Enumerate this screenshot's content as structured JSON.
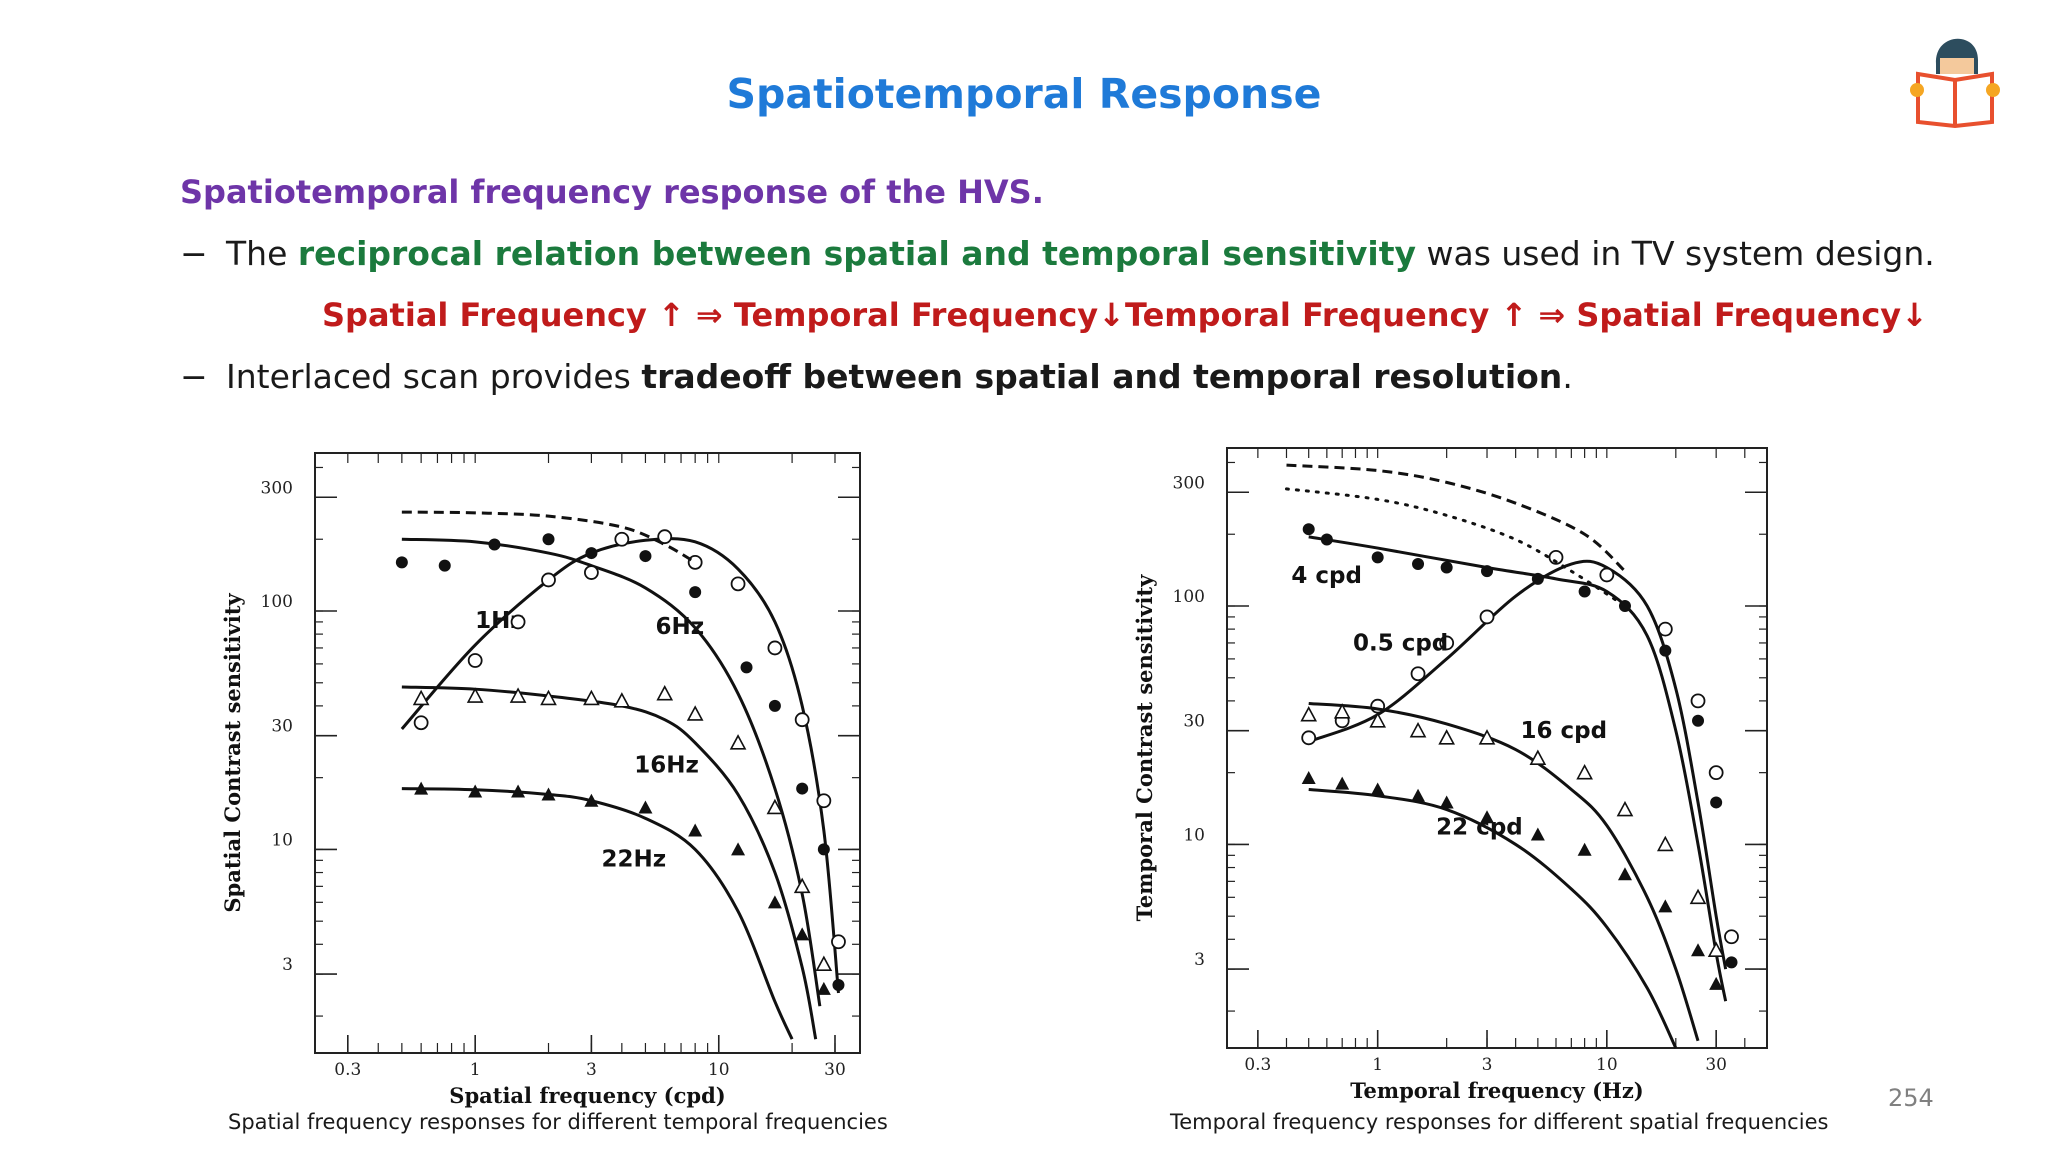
{
  "slide": {
    "title": "Spatiotemporal Response",
    "subheading": "Spatiotemporal frequency response of the HVS.",
    "bullet1": {
      "dash": "−",
      "pre": "The ",
      "highlight": "reciprocal relation between spatial and temporal sensitivity",
      "post": " was used in TV system design."
    },
    "relation_left": "Spatial Frequency ↑ ⇒ Temporal Frequency↓",
    "relation_right": "Temporal Frequency ↑ ⇒ Spatial Frequency↓",
    "bullet2": {
      "dash": "−",
      "pre": "Interlaced scan provides ",
      "bold": "tradeoff between spatial and temporal resolution",
      "post": "."
    },
    "caption_left": "Spatial frequency responses for different temporal frequencies",
    "caption_right": "Temporal frequency responses for different spatial  frequencies",
    "page_number": "254",
    "logo_icon": "reader-book-icon"
  },
  "chart_data": [
    {
      "type": "line",
      "xlabel": "Spatial frequency (cpd)",
      "ylabel": "Spatial Contrast sensitivity",
      "xscale": "log",
      "yscale": "log",
      "xlim": [
        0.22,
        38
      ],
      "ylim": [
        1.4,
        460
      ],
      "xticks": [
        0.3,
        1,
        3,
        10,
        30
      ],
      "yticks": [
        3,
        10,
        30,
        100,
        300
      ],
      "series": [
        {
          "name": "1Hz",
          "marker": "filled-circle",
          "label_at": [
            1.0,
            85
          ],
          "curve": [
            [
              0.5,
              200
            ],
            [
              1,
              195
            ],
            [
              2,
              175
            ],
            [
              3,
              155
            ],
            [
              5,
              125
            ],
            [
              8,
              85
            ],
            [
              12,
              45
            ],
            [
              17,
              18
            ],
            [
              22,
              6.5
            ],
            [
              26,
              2.2
            ]
          ],
          "points": [
            [
              0.5,
              160
            ],
            [
              0.75,
              155
            ],
            [
              1.2,
              190
            ],
            [
              2,
              200
            ],
            [
              3,
              175
            ],
            [
              5,
              170
            ],
            [
              8,
              120
            ],
            [
              13,
              58
            ],
            [
              17,
              40
            ],
            [
              22,
              18
            ],
            [
              27,
              10
            ],
            [
              31,
              2.7
            ]
          ]
        },
        {
          "name": "6Hz",
          "marker": "open-circle",
          "label_at": [
            5.5,
            80
          ],
          "curve": [
            [
              0.5,
              32
            ],
            [
              1,
              72
            ],
            [
              2,
              135
            ],
            [
              3,
              175
            ],
            [
              5,
              198
            ],
            [
              8,
              195
            ],
            [
              12,
              150
            ],
            [
              17,
              90
            ],
            [
              22,
              40
            ],
            [
              27,
              12
            ],
            [
              31,
              2.5
            ]
          ],
          "points": [
            [
              0.6,
              34
            ],
            [
              1,
              62
            ],
            [
              1.5,
              90
            ],
            [
              2,
              135
            ],
            [
              3,
              145
            ],
            [
              4,
              200
            ],
            [
              6,
              205
            ],
            [
              8,
              160
            ],
            [
              12,
              130
            ],
            [
              17,
              70
            ],
            [
              22,
              35
            ],
            [
              27,
              16
            ],
            [
              31,
              4.1
            ]
          ]
        },
        {
          "name": "16Hz",
          "marker": "open-triangle",
          "label_at": [
            4.5,
            21
          ],
          "curve": [
            [
              0.5,
              48
            ],
            [
              1,
              47
            ],
            [
              2,
              44
            ],
            [
              4,
              40
            ],
            [
              6,
              35
            ],
            [
              8,
              28
            ],
            [
              12,
              17
            ],
            [
              17,
              8
            ],
            [
              22,
              3.2
            ],
            [
              25,
              1.6
            ]
          ],
          "points": [
            [
              0.6,
              43
            ],
            [
              1,
              44
            ],
            [
              1.5,
              44
            ],
            [
              2,
              43
            ],
            [
              3,
              43
            ],
            [
              4,
              42
            ],
            [
              6,
              45
            ],
            [
              8,
              37
            ],
            [
              12,
              28
            ],
            [
              17,
              15
            ],
            [
              22,
              7
            ],
            [
              27,
              3.3
            ]
          ]
        },
        {
          "name": "22Hz",
          "marker": "filled-triangle",
          "label_at": [
            3.3,
            8.5
          ],
          "curve": [
            [
              0.5,
              18
            ],
            [
              1,
              17.8
            ],
            [
              2,
              17
            ],
            [
              3,
              16
            ],
            [
              5,
              13.5
            ],
            [
              8,
              10
            ],
            [
              12,
              5.5
            ],
            [
              17,
              2.3
            ],
            [
              20,
              1.6
            ]
          ],
          "points": [
            [
              0.6,
              18
            ],
            [
              1,
              17.5
            ],
            [
              1.5,
              17.5
            ],
            [
              2,
              17
            ],
            [
              3,
              16
            ],
            [
              5,
              15
            ],
            [
              8,
              12
            ],
            [
              12,
              10
            ],
            [
              17,
              6
            ],
            [
              22,
              4.4
            ],
            [
              27,
              2.6
            ]
          ]
        },
        {
          "name": "",
          "style": "dashed",
          "curve": [
            [
              0.5,
              260
            ],
            [
              1,
              258
            ],
            [
              2,
              250
            ],
            [
              4,
              225
            ],
            [
              6,
              190
            ],
            [
              8,
              160
            ]
          ]
        }
      ]
    },
    {
      "type": "line",
      "xlabel": "Temporal frequency (Hz)",
      "ylabel": "Temporal Contrast sensitivity",
      "xscale": "log",
      "yscale": "log",
      "xlim": [
        0.22,
        50
      ],
      "ylim": [
        1.4,
        460
      ],
      "xticks": [
        0.3,
        1,
        3,
        10,
        30
      ],
      "yticks": [
        3,
        10,
        30,
        100,
        300
      ],
      "series": [
        {
          "name": "4 cpd",
          "marker": "filled-circle",
          "label_at": [
            0.42,
            125
          ],
          "curve": [
            [
              0.5,
              195
            ],
            [
              1,
              175
            ],
            [
              3,
              145
            ],
            [
              6,
              130
            ],
            [
              10,
              115
            ],
            [
              15,
              75
            ],
            [
              20,
              30
            ],
            [
              25,
              10
            ],
            [
              30,
              3.5
            ],
            [
              33,
              2.2
            ]
          ],
          "points": [
            [
              0.5,
              210
            ],
            [
              0.6,
              190
            ],
            [
              1,
              160
            ],
            [
              1.5,
              150
            ],
            [
              2,
              145
            ],
            [
              3,
              140
            ],
            [
              5,
              130
            ],
            [
              8,
              115
            ],
            [
              12,
              100
            ],
            [
              18,
              65
            ],
            [
              25,
              33
            ],
            [
              30,
              15
            ],
            [
              35,
              3.2
            ]
          ]
        },
        {
          "name": "0.5 cpd",
          "marker": "open-circle",
          "label_at": [
            0.78,
            65
          ],
          "curve": [
            [
              0.5,
              27
            ],
            [
              1,
              35
            ],
            [
              2,
              60
            ],
            [
              4,
              110
            ],
            [
              7,
              150
            ],
            [
              10,
              145
            ],
            [
              15,
              100
            ],
            [
              20,
              45
            ],
            [
              25,
              15
            ],
            [
              30,
              5
            ],
            [
              33,
              3
            ]
          ],
          "points": [
            [
              0.5,
              28
            ],
            [
              0.7,
              33
            ],
            [
              1,
              38
            ],
            [
              1.5,
              52
            ],
            [
              2,
              70
            ],
            [
              3,
              90
            ],
            [
              6,
              160
            ],
            [
              10,
              135
            ],
            [
              18,
              80
            ],
            [
              25,
              40
            ],
            [
              30,
              20
            ],
            [
              35,
              4.1
            ]
          ]
        },
        {
          "name": "16 cpd",
          "marker": "open-triangle",
          "label_at": [
            4.2,
            28
          ],
          "curve": [
            [
              0.5,
              39
            ],
            [
              1,
              37
            ],
            [
              2,
              32
            ],
            [
              4,
              25
            ],
            [
              7,
              17
            ],
            [
              10,
              12
            ],
            [
              15,
              6
            ],
            [
              20,
              3
            ],
            [
              25,
              1.5
            ]
          ],
          "points": [
            [
              0.5,
              35
            ],
            [
              0.7,
              36
            ],
            [
              1,
              33
            ],
            [
              1.5,
              30
            ],
            [
              2,
              28
            ],
            [
              3,
              28
            ],
            [
              5,
              23
            ],
            [
              8,
              20
            ],
            [
              12,
              14
            ],
            [
              18,
              10
            ],
            [
              25,
              6
            ],
            [
              30,
              3.6
            ]
          ]
        },
        {
          "name": "22 cpd",
          "marker": "filled-triangle",
          "label_at": [
            1.8,
            11
          ],
          "curve": [
            [
              0.5,
              17
            ],
            [
              1,
              16
            ],
            [
              2,
              14
            ],
            [
              4,
              10
            ],
            [
              7,
              6.5
            ],
            [
              10,
              4.5
            ],
            [
              15,
              2.5
            ],
            [
              20,
              1.4
            ]
          ],
          "points": [
            [
              0.5,
              19
            ],
            [
              0.7,
              18
            ],
            [
              1,
              17
            ],
            [
              1.5,
              16
            ],
            [
              2,
              15
            ],
            [
              3,
              13
            ],
            [
              5,
              11
            ],
            [
              8,
              9.5
            ],
            [
              12,
              7.5
            ],
            [
              18,
              5.5
            ],
            [
              25,
              3.6
            ],
            [
              30,
              2.6
            ]
          ]
        },
        {
          "name": "",
          "style": "dashed",
          "curve": [
            [
              0.4,
              390
            ],
            [
              1,
              370
            ],
            [
              2,
              330
            ],
            [
              4,
              270
            ],
            [
              8,
              200
            ],
            [
              12,
              140
            ]
          ]
        },
        {
          "name": "",
          "style": "dotted",
          "curve": [
            [
              0.4,
              310
            ],
            [
              1,
              280
            ],
            [
              2,
              240
            ],
            [
              4,
              190
            ],
            [
              7,
              140
            ],
            [
              12,
              100
            ]
          ]
        }
      ]
    }
  ]
}
